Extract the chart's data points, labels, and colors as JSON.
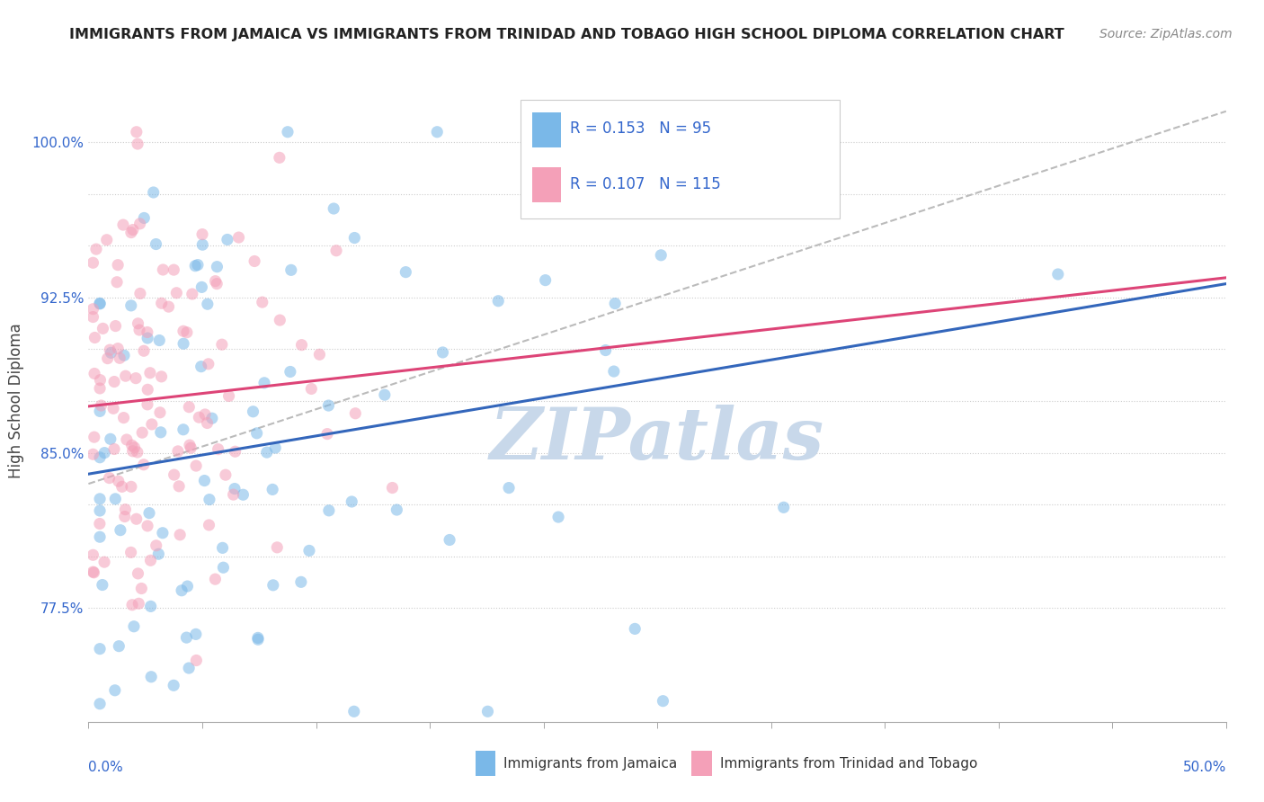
{
  "title": "IMMIGRANTS FROM JAMAICA VS IMMIGRANTS FROM TRINIDAD AND TOBAGO HIGH SCHOOL DIPLOMA CORRELATION CHART",
  "source": "Source: ZipAtlas.com",
  "ylabel": "High School Diploma",
  "ytick_vals": [
    0.775,
    0.8,
    0.825,
    0.85,
    0.875,
    0.9,
    0.925,
    0.95,
    0.975,
    1.0
  ],
  "ytick_labels": [
    "77.5%",
    "",
    "",
    "85.0%",
    "",
    "",
    "92.5%",
    "",
    "",
    "100.0%"
  ],
  "xlim": [
    0.0,
    0.5
  ],
  "ylim": [
    0.72,
    1.03
  ],
  "R_blue": 0.153,
  "N_blue": 95,
  "R_pink": 0.107,
  "N_pink": 115,
  "blue_color": "#7ab8e8",
  "pink_color": "#f4a0b8",
  "trend_blue": "#3366bb",
  "trend_pink": "#dd4477",
  "trend_dashed_color": "#bbbbbb",
  "watermark": "ZIPatlas",
  "watermark_color": "#c8d8ea",
  "legend_blue": "Immigrants from Jamaica",
  "legend_pink": "Immigrants from Trinidad and Tobago",
  "blue_seed": 12,
  "pink_seed": 7
}
